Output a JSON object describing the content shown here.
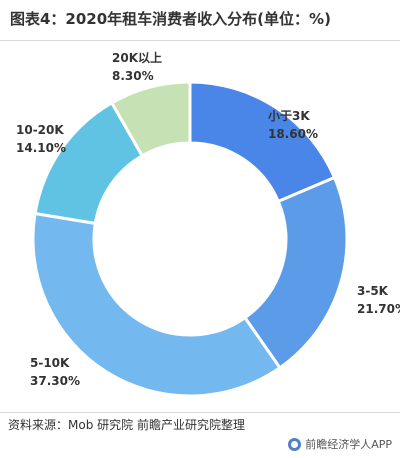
{
  "title": "图表4：2020年租车消费者收入分布(单位：%)",
  "source": "资料来源：Mob 研究院 前瞻产业研究院整理",
  "brand": "前瞻经济学人APP",
  "chart_data": {
    "type": "pie",
    "donut": true,
    "title": "图表4：2020年租车消费者收入分布(单位：%)",
    "unit": "%",
    "slices": [
      {
        "label": "小于3K",
        "value": 18.6,
        "value_label": "18.60%",
        "color": "#4a86e8"
      },
      {
        "label": "3-5K",
        "value": 21.7,
        "value_label": "21.70%",
        "color": "#5b9be8"
      },
      {
        "label": "5-10K",
        "value": 37.3,
        "value_label": "37.30%",
        "color": "#74b8f0"
      },
      {
        "label": "10-20K",
        "value": 14.1,
        "value_label": "14.10%",
        "color": "#61c3e4"
      },
      {
        "label": "20K以上",
        "value": 8.3,
        "value_label": "8.30%",
        "color": "#c6e2b4"
      }
    ]
  }
}
